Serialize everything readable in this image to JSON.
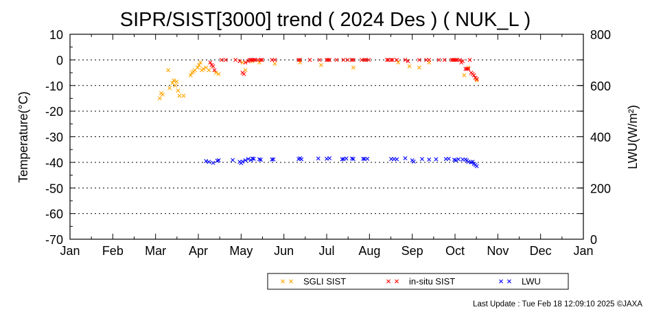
{
  "footer": {
    "last_update": "Last Update : Tue Feb 18 12:09:10 2025  ©JAXA"
  },
  "colors": {
    "sgli": "#ffa500",
    "insitu": "#ff0000",
    "lwu": "#0000ff",
    "grid": "#000000"
  },
  "chart_data": {
    "type": "scatter",
    "title": "SIPR/SIST[3000] trend ( 2024 Des ) ( NUK_L )",
    "ylabel": "Temperature(°C)",
    "y2label": "LWU(W/m²)",
    "ylim": [
      -70,
      10
    ],
    "y2lim": [
      0,
      800
    ],
    "yticks": [
      "10",
      "0",
      "-10",
      "-20",
      "-30",
      "-40",
      "-50",
      "-60",
      "-70"
    ],
    "y2ticks": [
      "800",
      "600",
      "400",
      "200",
      "0"
    ],
    "x_ticks": [
      "Jan",
      "Feb",
      "Mar",
      "Apr",
      "May",
      "Jun",
      "Jul",
      "Aug",
      "Sep",
      "Oct",
      "Nov",
      "Dec",
      "Jan"
    ],
    "grid": "dotted horizontal",
    "legend_position": "bottom",
    "series": [
      {
        "name": "SGLI SIST",
        "axis": "left",
        "points": [
          [
            "2024-03-05",
            -15
          ],
          [
            "2024-03-06",
            -13
          ],
          [
            "2024-03-07",
            -13.5
          ],
          [
            "2024-03-11",
            -4
          ],
          [
            "2024-03-12",
            -11
          ],
          [
            "2024-03-14",
            -9
          ],
          [
            "2024-03-15",
            -8
          ],
          [
            "2024-03-16",
            -10
          ],
          [
            "2024-03-17",
            -8.5
          ],
          [
            "2024-03-18",
            -12
          ],
          [
            "2024-03-19",
            -14
          ],
          [
            "2024-03-22",
            -14
          ],
          [
            "2024-03-27",
            -6
          ],
          [
            "2024-03-28",
            -5
          ],
          [
            "2024-03-29",
            -4.5
          ],
          [
            "2024-03-30",
            -4
          ],
          [
            "2024-04-01",
            -3
          ],
          [
            "2024-04-02",
            -2
          ],
          [
            "2024-04-03",
            -1
          ],
          [
            "2024-04-04",
            -4
          ],
          [
            "2024-04-05",
            -3.5
          ],
          [
            "2024-04-07",
            -3
          ],
          [
            "2024-04-09",
            -4
          ],
          [
            "2024-04-14",
            -5
          ],
          [
            "2024-04-16",
            -5.5
          ],
          [
            "2024-05-03",
            -1
          ],
          [
            "2024-05-05",
            -4
          ],
          [
            "2024-05-10",
            -0.5
          ],
          [
            "2024-05-15",
            -1
          ],
          [
            "2024-05-26",
            -1.5
          ],
          [
            "2024-06-13",
            -1
          ],
          [
            "2024-06-28",
            -2
          ],
          [
            "2024-07-21",
            -3
          ],
          [
            "2024-08-22",
            -1
          ],
          [
            "2024-08-30",
            -2.5
          ],
          [
            "2024-09-06",
            -3
          ],
          [
            "2024-09-13",
            -1
          ],
          [
            "2024-10-08",
            -6
          ],
          [
            "2024-10-11",
            -3
          ],
          [
            "2024-10-16",
            -7
          ],
          [
            "2024-10-17",
            -8
          ]
        ]
      },
      {
        "name": "in-situ SIST",
        "axis": "left",
        "points": [
          [
            "2024-04-10",
            -1
          ],
          [
            "2024-04-11",
            -2
          ],
          [
            "2024-04-12",
            -2.5
          ],
          [
            "2024-04-13",
            -4
          ],
          [
            "2024-04-18",
            0
          ],
          [
            "2024-04-21",
            0
          ],
          [
            "2024-04-28",
            0
          ],
          [
            "2024-05-01",
            -0.5
          ],
          [
            "2024-05-03",
            -5
          ],
          [
            "2024-05-04",
            -5.5
          ],
          [
            "2024-05-05",
            -1
          ],
          [
            "2024-05-07",
            -0.5
          ],
          [
            "2024-05-08",
            0
          ],
          [
            "2024-05-09",
            0
          ],
          [
            "2024-05-10",
            0
          ],
          [
            "2024-05-11",
            0
          ],
          [
            "2024-05-12",
            0
          ],
          [
            "2024-05-14",
            0
          ],
          [
            "2024-05-16",
            0
          ],
          [
            "2024-05-17",
            0
          ],
          [
            "2024-05-24",
            0
          ],
          [
            "2024-05-26",
            0
          ],
          [
            "2024-06-12",
            0
          ],
          [
            "2024-06-13",
            0
          ],
          [
            "2024-06-20",
            0
          ],
          [
            "2024-06-27",
            0
          ],
          [
            "2024-07-02",
            0
          ],
          [
            "2024-07-03",
            0
          ],
          [
            "2024-07-04",
            0
          ],
          [
            "2024-07-09",
            0
          ],
          [
            "2024-07-14",
            0
          ],
          [
            "2024-07-17",
            0
          ],
          [
            "2024-07-20",
            0
          ],
          [
            "2024-07-21",
            0
          ],
          [
            "2024-07-27",
            0
          ],
          [
            "2024-07-29",
            0
          ],
          [
            "2024-07-30",
            0
          ],
          [
            "2024-08-01",
            0
          ],
          [
            "2024-08-14",
            0
          ],
          [
            "2024-08-15",
            0
          ],
          [
            "2024-08-17",
            0
          ],
          [
            "2024-08-18",
            0
          ],
          [
            "2024-08-21",
            0
          ],
          [
            "2024-08-27",
            0
          ],
          [
            "2024-08-29",
            -0.5
          ],
          [
            "2024-09-06",
            0
          ],
          [
            "2024-09-11",
            0
          ],
          [
            "2024-09-13",
            0
          ],
          [
            "2024-09-20",
            0
          ],
          [
            "2024-09-24",
            0
          ],
          [
            "2024-09-29",
            0
          ],
          [
            "2024-09-30",
            0
          ],
          [
            "2024-10-01",
            0
          ],
          [
            "2024-10-02",
            0
          ],
          [
            "2024-10-03",
            0
          ],
          [
            "2024-10-05",
            0
          ],
          [
            "2024-10-06",
            -1
          ],
          [
            "2024-10-07",
            -0.5
          ],
          [
            "2024-10-09",
            -3.5
          ],
          [
            "2024-10-10",
            -3.5
          ],
          [
            "2024-10-11",
            -3.5
          ],
          [
            "2024-10-12",
            0
          ],
          [
            "2024-10-13",
            -5
          ],
          [
            "2024-10-14",
            -5.5
          ],
          [
            "2024-10-15",
            -6
          ],
          [
            "2024-10-16",
            -7
          ],
          [
            "2024-10-17",
            -7.5
          ]
        ]
      },
      {
        "name": "LWU",
        "axis": "right",
        "points": [
          [
            "2024-04-07",
            305
          ],
          [
            "2024-04-09",
            302
          ],
          [
            "2024-04-12",
            298
          ],
          [
            "2024-04-15",
            306
          ],
          [
            "2024-04-16",
            308
          ],
          [
            "2024-04-26",
            309
          ],
          [
            "2024-05-01",
            302
          ],
          [
            "2024-05-02",
            297
          ],
          [
            "2024-05-03",
            303
          ],
          [
            "2024-05-05",
            308
          ],
          [
            "2024-05-07",
            313
          ],
          [
            "2024-05-09",
            309
          ],
          [
            "2024-05-10",
            315
          ],
          [
            "2024-05-11",
            314
          ],
          [
            "2024-05-15",
            312
          ],
          [
            "2024-05-16",
            310
          ],
          [
            "2024-05-24",
            311
          ],
          [
            "2024-05-25",
            312
          ],
          [
            "2024-06-12",
            313
          ],
          [
            "2024-06-13",
            316
          ],
          [
            "2024-06-14",
            312
          ],
          [
            "2024-06-26",
            315
          ],
          [
            "2024-07-02",
            314
          ],
          [
            "2024-07-04",
            316
          ],
          [
            "2024-07-13",
            312
          ],
          [
            "2024-07-14",
            313
          ],
          [
            "2024-07-16",
            315
          ],
          [
            "2024-07-20",
            315
          ],
          [
            "2024-07-21",
            313
          ],
          [
            "2024-07-28",
            314
          ],
          [
            "2024-07-29",
            313
          ],
          [
            "2024-07-31",
            314
          ],
          [
            "2024-08-17",
            313
          ],
          [
            "2024-08-19",
            313
          ],
          [
            "2024-08-21",
            312
          ],
          [
            "2024-08-27",
            316
          ],
          [
            "2024-09-01",
            308
          ],
          [
            "2024-09-02",
            303
          ],
          [
            "2024-09-08",
            313
          ],
          [
            "2024-09-13",
            311
          ],
          [
            "2024-09-18",
            312
          ],
          [
            "2024-09-25",
            313
          ],
          [
            "2024-09-27",
            314
          ],
          [
            "2024-10-01",
            310
          ],
          [
            "2024-10-02",
            308
          ],
          [
            "2024-10-04",
            312
          ],
          [
            "2024-10-07",
            311
          ],
          [
            "2024-10-09",
            311
          ],
          [
            "2024-10-10",
            307
          ],
          [
            "2024-10-11",
            302
          ],
          [
            "2024-10-13",
            300
          ],
          [
            "2024-10-14",
            302
          ],
          [
            "2024-10-15",
            294
          ],
          [
            "2024-10-16",
            290
          ],
          [
            "2024-10-17",
            285
          ]
        ]
      }
    ]
  }
}
